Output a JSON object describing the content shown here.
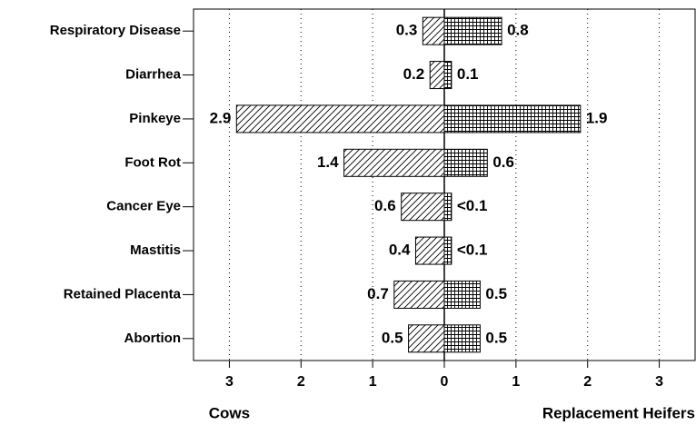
{
  "chart_data": {
    "type": "butterfly-bar",
    "categories": [
      "Respiratory Disease",
      "Diarrhea",
      "Pinkeye",
      "Foot Rot",
      "Cancer Eye",
      "Mastitis",
      "Retained Placenta",
      "Abortion"
    ],
    "series": [
      {
        "name": "Cows",
        "color": "#000000",
        "values": [
          -0.3,
          -0.2,
          -2.9,
          -1.4,
          -0.6,
          -0.4,
          -0.7,
          -0.5
        ],
        "value_labels": [
          "0.3",
          "0.2",
          "2.9",
          "1.4",
          "0.6",
          "0.4",
          "0.7",
          "0.5"
        ]
      },
      {
        "name": "Replacement Heifers",
        "color": "#000000",
        "values": [
          0.8,
          0.1,
          1.9,
          0.6,
          0.1,
          0.1,
          0.5,
          0.5
        ],
        "value_labels": [
          "0.8",
          "0.1",
          "1.9",
          "0.6",
          "<0.1",
          "<0.1",
          "0.5",
          "0.5"
        ]
      }
    ],
    "xlim": [
      -3.5,
      3.5
    ],
    "xticks": [
      {
        "value": -3,
        "label": "3"
      },
      {
        "value": -2,
        "label": "2"
      },
      {
        "value": -1,
        "label": "1"
      },
      0,
      1,
      2,
      3
    ],
    "grid": true
  }
}
